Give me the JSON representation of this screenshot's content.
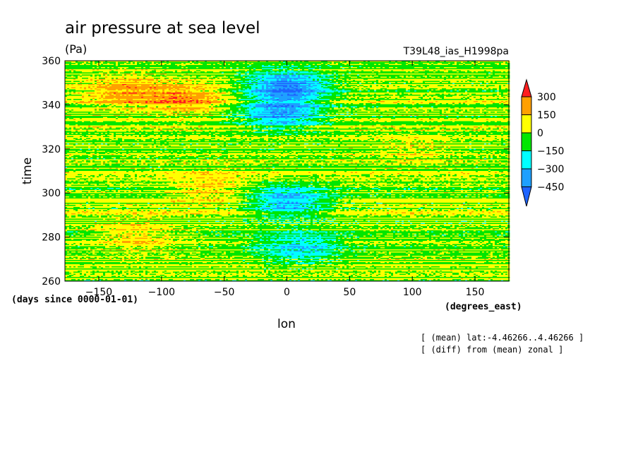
{
  "chart_data": {
    "type": "heatmap",
    "title": "air pressure at sea level",
    "units": "(Pa)",
    "dataset": "T39L48_ias_H1998pa",
    "xlabel": "lon",
    "ylabel": "time",
    "x_units": "(degrees_east)",
    "y_units": "(days since 0000-01-01)",
    "xlim": [
      -177,
      177
    ],
    "ylim": [
      260,
      360
    ],
    "x_ticks": [
      -150,
      -100,
      -50,
      0,
      50,
      100,
      150
    ],
    "y_ticks": [
      260,
      280,
      300,
      320,
      340,
      360
    ],
    "notes": [
      "[ (mean) lat:-4.46266..4.46266 ]",
      "[ (diff) from (mean) zonal ]"
    ],
    "colorbar": {
      "levels": [
        -450,
        -300,
        -150,
        0,
        150,
        300
      ],
      "labels": [
        "300",
        "150",
        "0",
        "−150",
        "−300",
        "−450"
      ],
      "colors": [
        "#1e64ff",
        "#1ea0ff",
        "#00ffff",
        "#00e600",
        "#ffff00",
        "#ffa000",
        "#ff1e1e"
      ]
    },
    "field_features": [
      {
        "lon": 0,
        "time": 348,
        "value": -450
      },
      {
        "lon": -5,
        "time": 336,
        "value": -350
      },
      {
        "lon": 0,
        "time": 296,
        "value": -350
      },
      {
        "lon": 10,
        "time": 275,
        "value": -250
      },
      {
        "lon": -130,
        "time": 346,
        "value": 200
      },
      {
        "lon": -80,
        "time": 343,
        "value": 220
      },
      {
        "lon": -60,
        "time": 302,
        "value": 150
      },
      {
        "lon": -120,
        "time": 280,
        "value": 150
      },
      {
        "lon": 100,
        "time": 320,
        "value": 80
      }
    ]
  }
}
